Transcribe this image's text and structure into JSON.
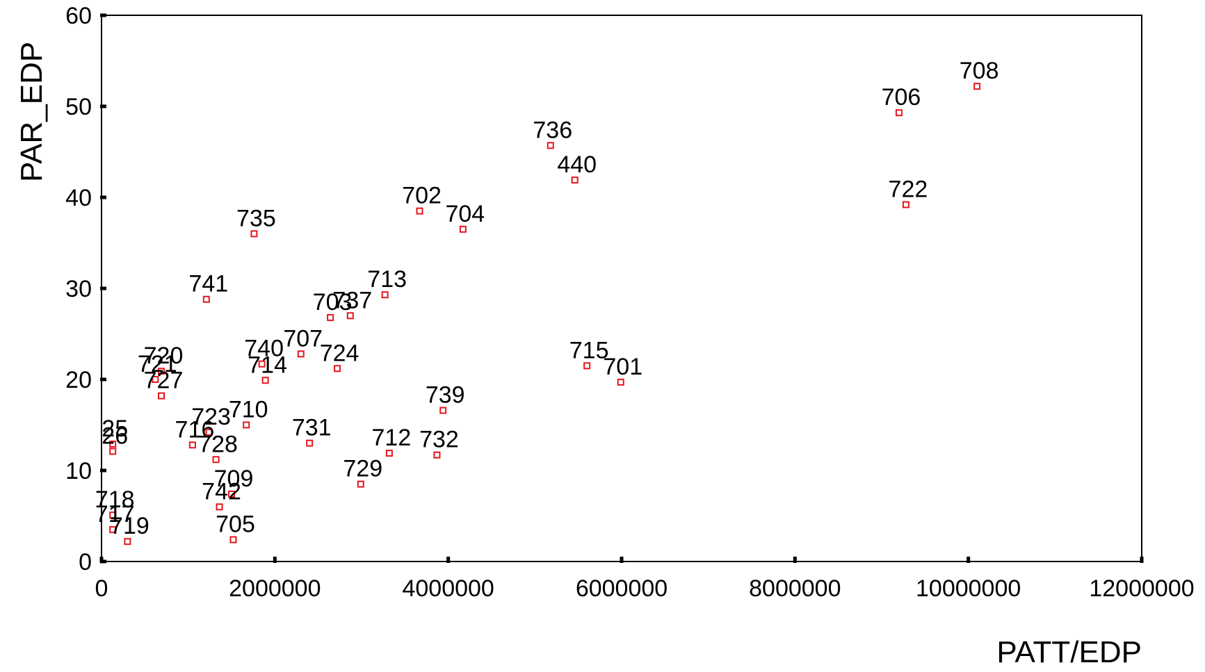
{
  "chart_data": {
    "type": "scatter",
    "title": "",
    "xlabel": "PATT/EDP",
    "ylabel": "PAR_EDP",
    "xlim": [
      0,
      12000000
    ],
    "ylim": [
      0,
      60
    ],
    "x_ticks": [
      0,
      2000000,
      4000000,
      6000000,
      8000000,
      10000000,
      12000000
    ],
    "x_tick_labels": [
      "0",
      "2000000",
      "4000000",
      "6000000",
      "8000000",
      "10000000",
      "12000000"
    ],
    "y_ticks": [
      0,
      10,
      20,
      30,
      40,
      50,
      60
    ],
    "y_tick_labels": [
      "0",
      "10",
      "20",
      "30",
      "40",
      "50",
      "60"
    ],
    "grid": false,
    "marker_color": "#e8141b",
    "points": [
      {
        "label": "708",
        "x": 10100000,
        "y": 52.2
      },
      {
        "label": "706",
        "x": 9200000,
        "y": 49.3
      },
      {
        "label": "722",
        "x": 9280000,
        "y": 39.2
      },
      {
        "label": "736",
        "x": 5180000,
        "y": 45.7
      },
      {
        "label": "440",
        "x": 5460000,
        "y": 41.9
      },
      {
        "label": "702",
        "x": 3670000,
        "y": 38.5
      },
      {
        "label": "704",
        "x": 4170000,
        "y": 36.5
      },
      {
        "label": "735",
        "x": 1760000,
        "y": 36.0
      },
      {
        "label": "741",
        "x": 1210000,
        "y": 28.8
      },
      {
        "label": "713",
        "x": 3270000,
        "y": 29.3
      },
      {
        "label": "703",
        "x": 2640000,
        "y": 26.8
      },
      {
        "label": "737",
        "x": 2870000,
        "y": 27.0
      },
      {
        "label": "707",
        "x": 2300000,
        "y": 22.8
      },
      {
        "label": "740",
        "x": 1850000,
        "y": 21.7
      },
      {
        "label": "714",
        "x": 1890000,
        "y": 19.9
      },
      {
        "label": "724",
        "x": 2720000,
        "y": 21.2
      },
      {
        "label": "720",
        "x": 690000,
        "y": 20.9
      },
      {
        "label": "721",
        "x": 620000,
        "y": 20.0
      },
      {
        "label": "727",
        "x": 690000,
        "y": 18.2
      },
      {
        "label": "715",
        "x": 5600000,
        "y": 21.5
      },
      {
        "label": "701",
        "x": 5990000,
        "y": 19.7
      },
      {
        "label": "739",
        "x": 3940000,
        "y": 16.6
      },
      {
        "label": "710",
        "x": 1670000,
        "y": 15.0
      },
      {
        "label": "723",
        "x": 1240000,
        "y": 14.2
      },
      {
        "label": "716",
        "x": 1050000,
        "y": 12.8
      },
      {
        "label": "728",
        "x": 1320000,
        "y": 11.2
      },
      {
        "label": "731",
        "x": 2400000,
        "y": 13.0
      },
      {
        "label": "712",
        "x": 3320000,
        "y": 11.9
      },
      {
        "label": "732",
        "x": 3870000,
        "y": 11.7
      },
      {
        "label": "729",
        "x": 2990000,
        "y": 8.5
      },
      {
        "label": "709",
        "x": 1500000,
        "y": 7.4
      },
      {
        "label": "742",
        "x": 1360000,
        "y": 6.0
      },
      {
        "label": "705",
        "x": 1520000,
        "y": 2.4
      },
      {
        "label": "25",
        "x": 130000,
        "y": 12.9
      },
      {
        "label": "26",
        "x": 130000,
        "y": 12.1
      },
      {
        "label": "718",
        "x": 130000,
        "y": 5.1
      },
      {
        "label": "717",
        "x": 130000,
        "y": 3.5
      },
      {
        "label": "719",
        "x": 300000,
        "y": 2.2
      }
    ]
  }
}
